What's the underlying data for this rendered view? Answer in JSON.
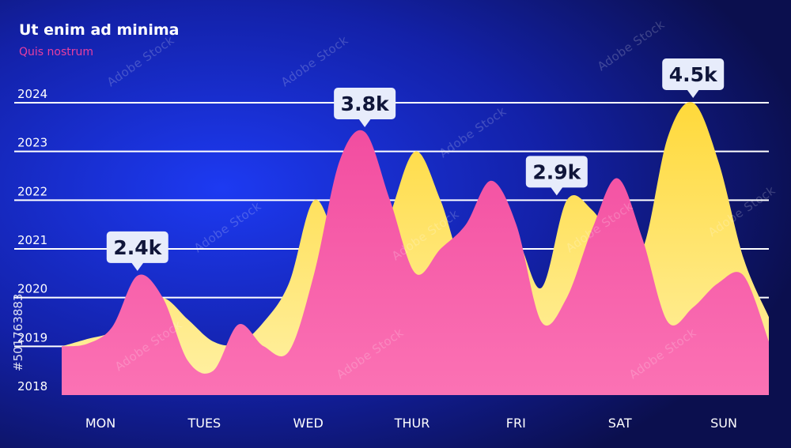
{
  "chart_data": {
    "type": "area",
    "title": "Ut enim ad minima",
    "subtitle": "Quis nostrum",
    "xlabel": "",
    "ylabel": "",
    "categories": [
      "MON",
      "TUES",
      "WED",
      "THUR",
      "FRI",
      "SAT",
      "SUN"
    ],
    "yticks": [
      "2018",
      "2019",
      "2020",
      "2021",
      "2022",
      "2023",
      "2024"
    ],
    "ylim": [
      2018,
      2024
    ],
    "grid": true,
    "series": [
      {
        "color": "#fbe67a",
        "x": [
          0.0,
          0.5,
          1.0,
          1.5,
          2.0,
          2.5,
          3.0,
          3.5,
          4.0,
          4.5,
          5.0,
          5.5,
          6.0,
          6.5,
          7.0,
          7.5,
          8.0,
          8.5,
          9.0,
          9.5,
          10.0,
          10.5,
          11.0,
          11.5,
          12.0,
          12.5,
          13.0,
          13.5,
          14.0
        ],
        "values": [
          2019.0,
          2019.15,
          2019.3,
          2019.75,
          2020.0,
          2019.55,
          2019.1,
          2019.05,
          2019.5,
          2020.3,
          2022.0,
          2021.0,
          2020.2,
          2021.7,
          2023.0,
          2022.0,
          2020.5,
          2020.8,
          2021.2,
          2020.2,
          2022.0,
          2021.8,
          2021.1,
          2021.0,
          2023.3,
          2024.0,
          2022.8,
          2020.8,
          2019.6
        ]
      },
      {
        "color": "#f55aa3",
        "x": [
          0.0,
          0.5,
          1.0,
          1.5,
          2.0,
          2.5,
          3.0,
          3.5,
          4.0,
          4.5,
          5.0,
          5.5,
          6.0,
          6.5,
          7.0,
          7.5,
          8.0,
          8.5,
          9.0,
          9.5,
          10.0,
          10.5,
          11.0,
          11.5,
          12.0,
          12.5,
          13.0,
          13.5,
          14.0
        ],
        "values": [
          2019.0,
          2019.05,
          2019.4,
          2020.45,
          2020.0,
          2018.7,
          2018.5,
          2019.45,
          2019.0,
          2018.9,
          2020.5,
          2022.8,
          2023.4,
          2022.0,
          2020.5,
          2021.0,
          2021.5,
          2022.4,
          2021.5,
          2019.5,
          2020.0,
          2021.4,
          2022.45,
          2021.2,
          2019.5,
          2019.8,
          2020.3,
          2020.45,
          2019.1
        ]
      }
    ],
    "annotations": [
      {
        "text": "2.4k",
        "x": 1.5,
        "y": 2020.45
      },
      {
        "text": "3.8k",
        "x": 6.0,
        "y": 2023.4
      },
      {
        "text": "2.9k",
        "x": 9.8,
        "y": 2022.0
      },
      {
        "text": "4.5k",
        "x": 12.5,
        "y": 2024.0
      }
    ]
  },
  "watermark": {
    "logo_text": "Adobe Stock",
    "id_text": "#501763883"
  },
  "colors": {
    "background_center": "#1d3af2",
    "background_edge": "#0b0f4e",
    "yellow_top": "#ffd93a",
    "yellow_bottom": "#fff1a6",
    "pink_top": "#f24da0",
    "pink_bottom": "#fb72b4",
    "label_bg": "#e7ecfb",
    "label_text": "#10163a"
  }
}
